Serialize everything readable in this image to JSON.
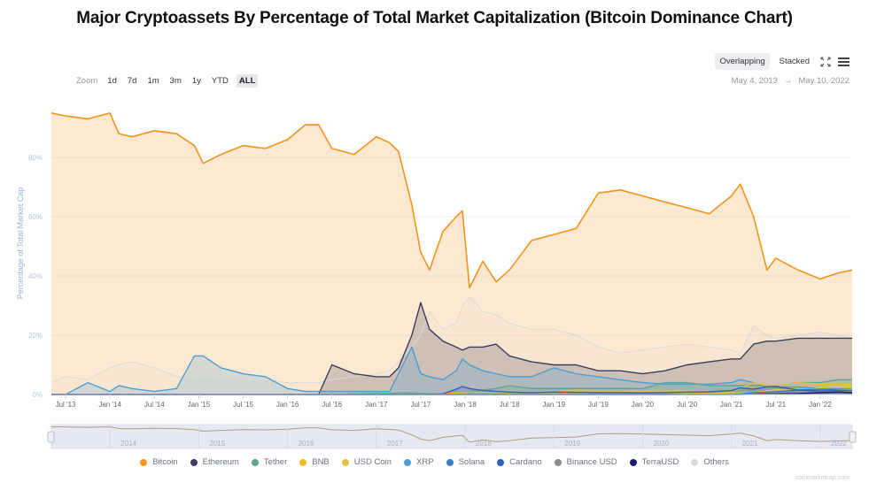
{
  "page": {
    "title": "Major Cryptoassets By Percentage of Total Market Capitalization (Bitcoin Dominance Chart)",
    "credits": "coinmarketcap.com"
  },
  "toolbar": {
    "modes": [
      {
        "label": "Overlapping",
        "active": true
      },
      {
        "label": "Stacked",
        "active": false
      }
    ],
    "fullscreen_icon": "expand-icon",
    "menu_icon": "hamburger-menu-icon"
  },
  "zoom_bar": {
    "label": "Zoom",
    "options": [
      {
        "label": "1d",
        "active": false
      },
      {
        "label": "7d",
        "active": false
      },
      {
        "label": "1m",
        "active": false
      },
      {
        "label": "3m",
        "active": false
      },
      {
        "label": "1y",
        "active": false
      },
      {
        "label": "YTD",
        "active": false
      },
      {
        "label": "ALL",
        "active": true
      }
    ]
  },
  "date_range": {
    "from": "May 4, 2013",
    "arrow": "→",
    "to": "May 10, 2022"
  },
  "chart_data": {
    "type": "area",
    "title": "Major Cryptoassets By Percentage of Total Market Capitalization (Bitcoin Dominance Chart)",
    "xlabel": "",
    "ylabel": "Percentage of Total Market Cap",
    "ylim": [
      0,
      100
    ],
    "yticks": [
      "0%",
      "20%",
      "40%",
      "60%",
      "80%"
    ],
    "ytick_values": [
      0,
      20,
      40,
      60,
      80
    ],
    "xticks": [
      "Jul '13",
      "Jan '14",
      "Jul '14",
      "Jan '15",
      "Jul '15",
      "Jan '16",
      "Jul '16",
      "Jan '17",
      "Jul '17",
      "Jan '18",
      "Jul '18",
      "Jan '19",
      "Jul '19",
      "Jan '20",
      "Jul '20",
      "Jan '21",
      "Jul '21",
      "Jan '22"
    ],
    "xtick_values": [
      2013.5,
      2014.0,
      2014.5,
      2015.0,
      2015.5,
      2016.0,
      2016.5,
      2017.0,
      2017.5,
      2018.0,
      2018.5,
      2019.0,
      2019.5,
      2020.0,
      2020.5,
      2021.0,
      2021.5,
      2022.0
    ],
    "xlim": [
      2013.34,
      2022.36
    ],
    "grid": true,
    "legend_position": "bottom",
    "navigator_labels": [
      "2014",
      "2015",
      "2016",
      "2017",
      "2018",
      "2019",
      "2020",
      "2021",
      "2022"
    ],
    "x": [
      2013.34,
      2013.5,
      2013.75,
      2014.0,
      2014.1,
      2014.25,
      2014.5,
      2014.75,
      2014.95,
      2015.05,
      2015.25,
      2015.5,
      2015.75,
      2016.0,
      2016.2,
      2016.35,
      2016.5,
      2016.75,
      2017.0,
      2017.15,
      2017.25,
      2017.4,
      2017.5,
      2017.6,
      2017.75,
      2017.9,
      2017.97,
      2018.05,
      2018.2,
      2018.35,
      2018.5,
      2018.75,
      2019.0,
      2019.25,
      2019.5,
      2019.75,
      2020.0,
      2020.25,
      2020.5,
      2020.75,
      2021.0,
      2021.1,
      2021.25,
      2021.4,
      2021.5,
      2021.75,
      2022.0,
      2022.2,
      2022.36
    ],
    "series": [
      {
        "name": "Bitcoin",
        "color": "#f7931a",
        "values": [
          95,
          94,
          93,
          95,
          88,
          87,
          89,
          88,
          84,
          78,
          81,
          84,
          83,
          86,
          91,
          91,
          83,
          81,
          87,
          85,
          82,
          64,
          48,
          42,
          55,
          60,
          62,
          36,
          45,
          38,
          42,
          52,
          54,
          56,
          68,
          69,
          67,
          65,
          63,
          61,
          67,
          71,
          60,
          42,
          46,
          42,
          39,
          41,
          42
        ]
      },
      {
        "name": "Ethereum",
        "color": "#3c3c5d",
        "values": [
          0,
          0,
          0,
          0,
          0,
          0,
          0,
          0,
          0,
          0,
          0,
          0,
          0,
          0,
          0,
          0,
          10,
          7,
          6,
          6,
          9,
          20,
          31,
          22,
          18,
          16,
          15,
          16,
          16,
          17,
          13,
          11,
          10,
          10,
          8,
          8,
          7,
          8,
          10,
          11,
          12,
          12,
          17,
          18,
          18,
          19,
          19,
          19,
          19
        ]
      },
      {
        "name": "Tether",
        "color": "#5aa78f",
        "values": [
          0,
          0,
          0,
          0,
          0,
          0,
          0,
          0,
          0,
          0,
          0,
          0,
          0,
          0,
          0,
          0,
          0,
          0.2,
          0.3,
          0.3,
          0.5,
          0.5,
          0.4,
          0.3,
          0.3,
          0.5,
          0.5,
          1,
          1.5,
          2,
          3,
          2,
          2,
          2,
          2,
          2,
          2,
          4,
          4,
          3,
          3,
          3,
          3,
          3,
          3,
          4,
          4,
          5,
          5
        ]
      },
      {
        "name": "BNB",
        "color": "#f3ba2f",
        "values": [
          0,
          0,
          0,
          0,
          0,
          0,
          0,
          0,
          0,
          0,
          0,
          0,
          0,
          0,
          0,
          0,
          0,
          0,
          0,
          0,
          0,
          0,
          0,
          0.1,
          0.2,
          0.5,
          0.6,
          0.8,
          0.8,
          0.7,
          0.7,
          0.7,
          0.8,
          1.5,
          1.2,
          1.2,
          1.2,
          1.3,
          1.3,
          1.0,
          1.2,
          2,
          4,
          3,
          3,
          4,
          3.5,
          3.5,
          3.3
        ]
      },
      {
        "name": "USD Coin",
        "color": "#e8c14a",
        "values": [
          0,
          0,
          0,
          0,
          0,
          0,
          0,
          0,
          0,
          0,
          0,
          0,
          0,
          0,
          0,
          0,
          0,
          0,
          0,
          0,
          0,
          0,
          0,
          0,
          0,
          0,
          0,
          0,
          0,
          0,
          0,
          0.2,
          0.2,
          0.2,
          0.2,
          0.2,
          0.2,
          0.3,
          0.3,
          0.4,
          0.6,
          0.6,
          0.6,
          1.2,
          1.6,
          1.3,
          2.2,
          2.5,
          3
        ]
      },
      {
        "name": "XRP",
        "color": "#4a9fd5",
        "values": [
          0,
          0,
          4,
          1,
          3,
          2,
          1,
          2,
          13,
          13,
          9,
          7,
          6,
          2,
          1,
          1,
          1,
          1,
          1,
          1,
          7,
          16,
          7,
          6,
          5,
          8,
          12,
          10,
          8,
          7,
          6,
          6,
          9,
          7,
          6,
          5,
          4,
          3.5,
          3.5,
          3.5,
          4,
          5,
          4,
          2.5,
          2.5,
          2.5,
          2,
          2,
          1.8
        ]
      },
      {
        "name": "Solana",
        "color": "#3a7fbf",
        "values": [
          0,
          0,
          0,
          0,
          0,
          0,
          0,
          0,
          0,
          0,
          0,
          0,
          0,
          0,
          0,
          0,
          0,
          0,
          0,
          0,
          0,
          0,
          0,
          0,
          0,
          0,
          0,
          0,
          0,
          0,
          0,
          0,
          0,
          0,
          0,
          0,
          0,
          0,
          0.1,
          0.1,
          0.1,
          0.2,
          0.6,
          0.8,
          0.9,
          1.5,
          1.8,
          1.5,
          1.2
        ]
      },
      {
        "name": "Cardano",
        "color": "#2f5fbf",
        "values": [
          0,
          0,
          0,
          0,
          0,
          0,
          0,
          0,
          0,
          0,
          0,
          0,
          0,
          0,
          0,
          0,
          0,
          0,
          0,
          0,
          0,
          0,
          0,
          0,
          0.2,
          1.8,
          2.7,
          2,
          1.3,
          1,
          0.8,
          0.6,
          0.8,
          0.7,
          0.6,
          0.6,
          0.5,
          0.6,
          0.8,
          0.9,
          1.3,
          2.2,
          1.8,
          2.6,
          2.7,
          1.5,
          1.2,
          1.3,
          1.2
        ]
      },
      {
        "name": "Binance USD",
        "color": "#8c8c8c",
        "values": [
          0,
          0,
          0,
          0,
          0,
          0,
          0,
          0,
          0,
          0,
          0,
          0,
          0,
          0,
          0,
          0,
          0,
          0,
          0,
          0,
          0,
          0,
          0,
          0,
          0,
          0,
          0,
          0,
          0,
          0,
          0,
          0,
          0,
          0,
          0,
          0.1,
          0.1,
          0.1,
          0.1,
          0.1,
          0.1,
          0.1,
          0.2,
          0.5,
          0.6,
          0.6,
          0.7,
          0.9,
          1
        ]
      },
      {
        "name": "TerraUSD",
        "color": "#1c1a6b",
        "values": [
          0,
          0,
          0,
          0,
          0,
          0,
          0,
          0,
          0,
          0,
          0,
          0,
          0,
          0,
          0,
          0,
          0,
          0,
          0,
          0,
          0,
          0,
          0,
          0,
          0,
          0,
          0,
          0,
          0,
          0,
          0,
          0,
          0,
          0,
          0,
          0,
          0,
          0,
          0,
          0,
          0,
          0,
          0.1,
          0.2,
          0.2,
          0.3,
          0.6,
          0.8,
          0.6
        ]
      },
      {
        "name": "Others",
        "color": "#d9d9d9",
        "values": [
          4,
          6,
          5,
          9,
          10,
          11,
          9,
          6,
          5,
          6,
          5,
          5,
          5,
          4,
          4,
          4,
          5,
          6,
          7,
          8,
          11,
          16,
          20,
          28,
          22,
          24,
          30,
          33,
          28,
          27,
          24,
          22,
          22,
          20,
          16,
          14,
          15,
          16,
          17,
          16,
          15,
          14,
          23,
          20,
          19,
          20,
          21,
          20,
          19
        ]
      }
    ]
  }
}
